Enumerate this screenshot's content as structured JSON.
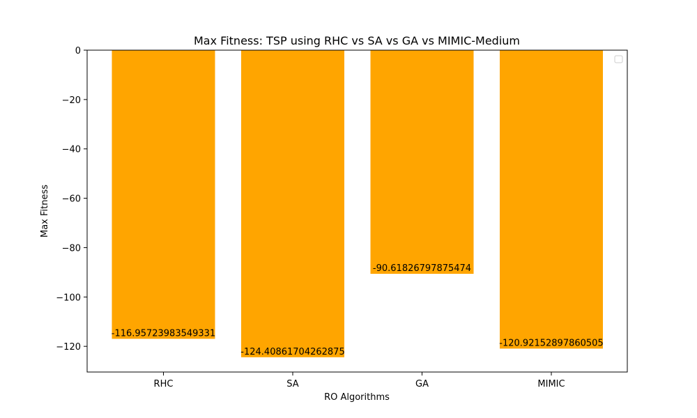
{
  "chart_data": {
    "type": "bar",
    "title": "Max Fitness: TSP using RHC vs SA vs GA vs MIMIC-Medium",
    "xlabel": "RO Algorithms",
    "ylabel": "Max Fitness",
    "categories": [
      "RHC",
      "SA",
      "GA",
      "MIMIC"
    ],
    "values": [
      -116.95723983549331,
      -124.40861704262875,
      -90.61826797875474,
      -120.92152897860505
    ],
    "value_labels": [
      "-116.95723983549331",
      "-124.40861704262875",
      "-90.61826797875474",
      "-120.92152897860505"
    ],
    "ylim": [
      -130.4,
      0
    ],
    "yticks": [
      0,
      -20,
      -40,
      -60,
      -80,
      -100,
      -120
    ],
    "ytick_labels": [
      "0",
      "−20",
      "−40",
      "−60",
      "−80",
      "−100",
      "−120"
    ],
    "bar_color": "#ffa500",
    "legend": "top-right (empty)",
    "grid": false
  }
}
